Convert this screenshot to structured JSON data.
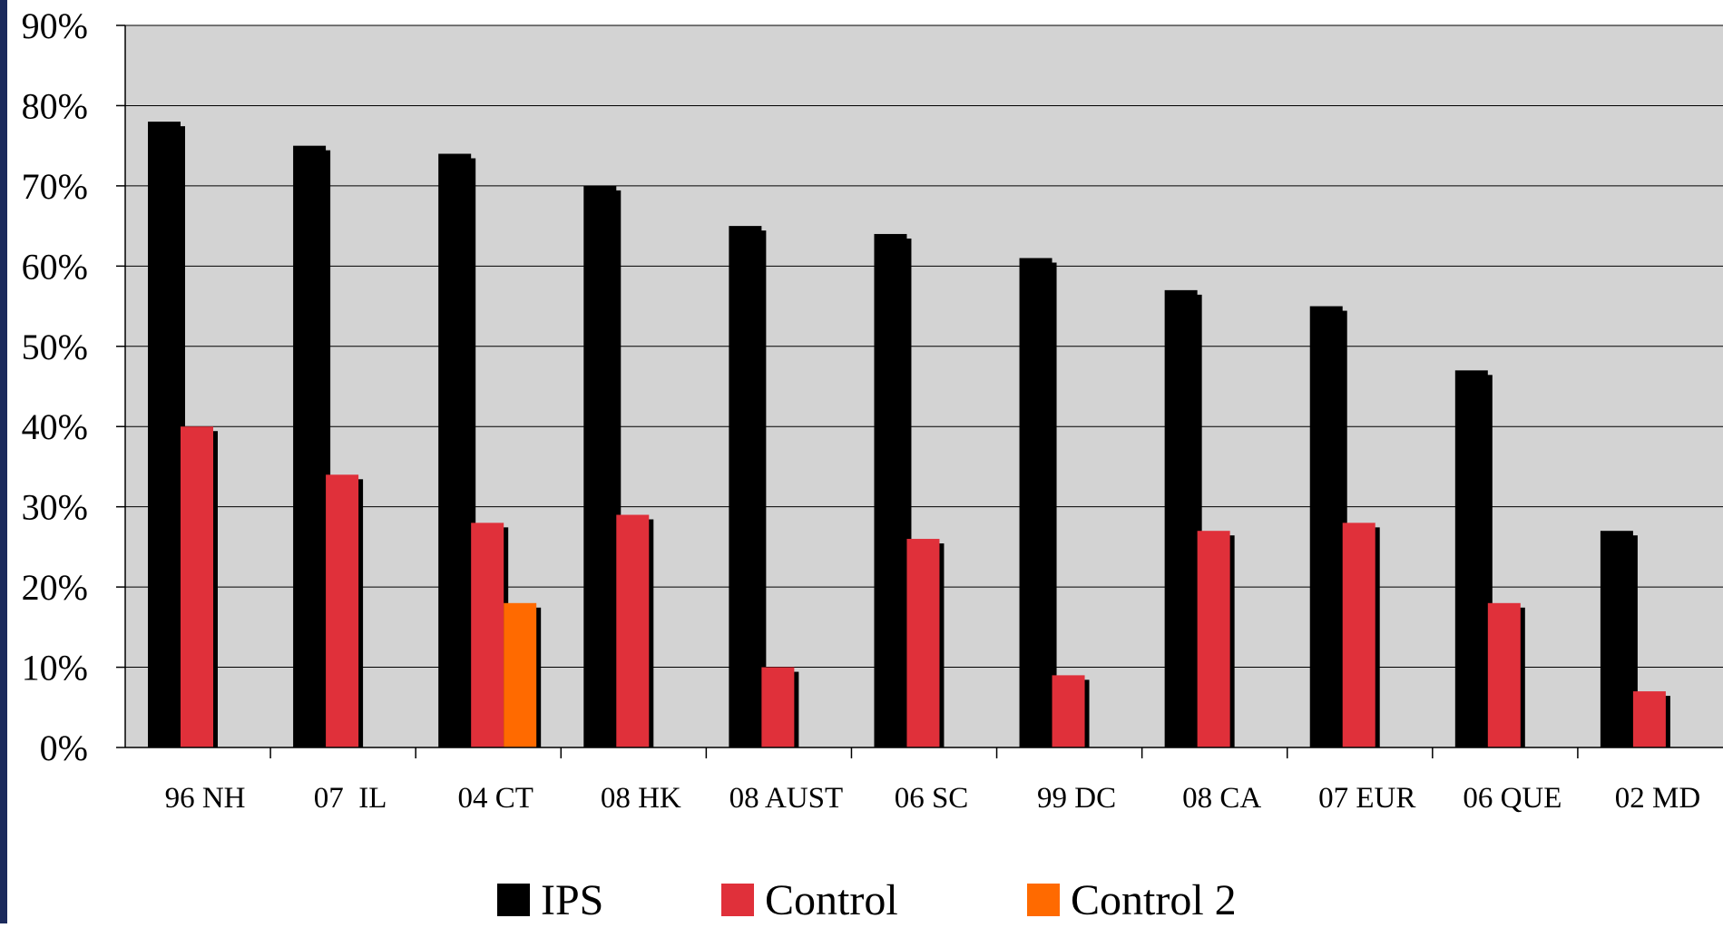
{
  "chart_data": {
    "type": "bar",
    "title": "",
    "xlabel": "",
    "ylabel": "",
    "ylim": [
      0,
      90
    ],
    "ytick_step": 10,
    "ytick_suffix": "%",
    "grid": true,
    "legend_position": "bottom-center",
    "background_color": "#d3d3d3",
    "categories": [
      "96 NH",
      "07  IL",
      "04 CT",
      "08 HK",
      "08 AUST",
      "06 SC",
      "99 DC",
      "08 CA",
      "07 EUR",
      "06 QUE",
      "02 MD"
    ],
    "series": [
      {
        "name": "IPS",
        "color": "#000000",
        "values": [
          78,
          75,
          74,
          70,
          65,
          64,
          61,
          57,
          55,
          47,
          27
        ]
      },
      {
        "name": "Control",
        "color": "#e0303a",
        "values": [
          40,
          34,
          28,
          29,
          10,
          26,
          9,
          27,
          28,
          18,
          7
        ]
      },
      {
        "name": "Control 2",
        "color": "#ff6a00",
        "values": [
          null,
          null,
          18,
          null,
          null,
          null,
          null,
          null,
          null,
          null,
          null
        ]
      }
    ]
  }
}
